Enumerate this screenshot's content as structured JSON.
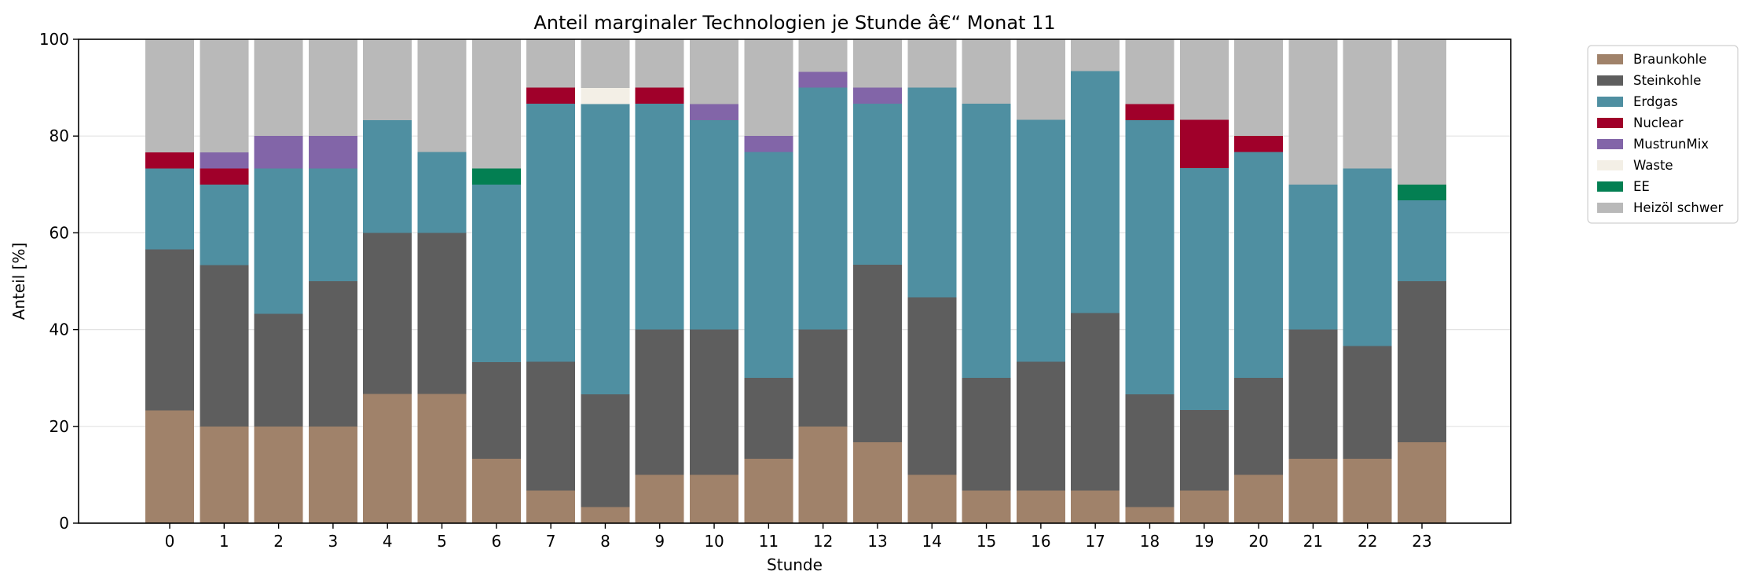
{
  "chart_data": {
    "type": "bar",
    "stacked": true,
    "title": "Anteil marginaler Technologien je Stunde â€“ Monat 11",
    "xlabel": "Stunde",
    "ylabel": "Anteil [%]",
    "ylim": [
      0,
      100
    ],
    "yticks": [
      0,
      20,
      40,
      60,
      80,
      100
    ],
    "grid": "horizontal",
    "legend_position": "outside-right",
    "categories": [
      "0",
      "1",
      "2",
      "3",
      "4",
      "5",
      "6",
      "7",
      "8",
      "9",
      "10",
      "11",
      "12",
      "13",
      "14",
      "15",
      "16",
      "17",
      "18",
      "19",
      "20",
      "21",
      "22",
      "23"
    ],
    "series": [
      {
        "name": "Braunkohle",
        "color": "#a0826a",
        "values": [
          23.3,
          20,
          20,
          20,
          26.7,
          26.7,
          13.3,
          6.7,
          3.3,
          10,
          10,
          13.3,
          20,
          16.7,
          10,
          6.7,
          6.7,
          6.7,
          3.3,
          6.7,
          10,
          13.3,
          13.3,
          16.7
        ]
      },
      {
        "name": "Steinkohle",
        "color": "#5e5e5e",
        "values": [
          33.3,
          33.3,
          23.3,
          30,
          33.3,
          33.3,
          20,
          26.7,
          23.3,
          30,
          30,
          16.7,
          20,
          36.7,
          36.7,
          23.3,
          26.7,
          36.7,
          23.3,
          16.7,
          20,
          26.7,
          23.3,
          33.3
        ]
      },
      {
        "name": "Erdgas",
        "color": "#4f8fa1",
        "values": [
          16.7,
          16.7,
          30,
          23.3,
          23.3,
          16.7,
          36.7,
          53.3,
          60,
          46.7,
          43.3,
          46.7,
          50,
          33.3,
          43.3,
          56.7,
          50,
          50,
          56.7,
          50,
          46.7,
          30,
          36.7,
          16.7
        ]
      },
      {
        "name": "Nuclear",
        "color": "#a0002a",
        "values": [
          3.3,
          3.3,
          0,
          0,
          0,
          0,
          0,
          3.3,
          0,
          3.3,
          0,
          0,
          0,
          0,
          0,
          0,
          0,
          0,
          3.3,
          10,
          3.3,
          0,
          0,
          0
        ]
      },
      {
        "name": "MustrunMix",
        "color": "#8265a8",
        "values": [
          0,
          3.3,
          6.7,
          6.7,
          0,
          0,
          0,
          0,
          0,
          0,
          3.3,
          3.3,
          3.3,
          3.3,
          0,
          0,
          0,
          0,
          0,
          0,
          0,
          0,
          0,
          0
        ]
      },
      {
        "name": "Waste",
        "color": "#f3efe6",
        "values": [
          0,
          0,
          0,
          0,
          0,
          0,
          0,
          0,
          3.3,
          0,
          0,
          0,
          0,
          0,
          0,
          0,
          0,
          0,
          0,
          0,
          0,
          0,
          0,
          0
        ]
      },
      {
        "name": "EE",
        "color": "#037f52",
        "values": [
          0,
          0,
          0,
          0,
          0,
          0,
          3.3,
          0,
          0,
          0,
          0,
          0,
          0,
          0,
          0,
          0,
          0,
          0,
          0,
          0,
          0,
          0,
          0,
          3.3
        ]
      },
      {
        "name": "Heizöl schwer",
        "color": "#b9b9b9",
        "values": [
          23.3,
          23.3,
          20,
          20,
          16.7,
          23.3,
          26.7,
          10,
          10,
          10,
          13.3,
          20,
          6.7,
          10,
          10,
          13.3,
          16.7,
          6.7,
          13.3,
          16.7,
          20,
          30,
          26.7,
          30
        ]
      }
    ]
  }
}
